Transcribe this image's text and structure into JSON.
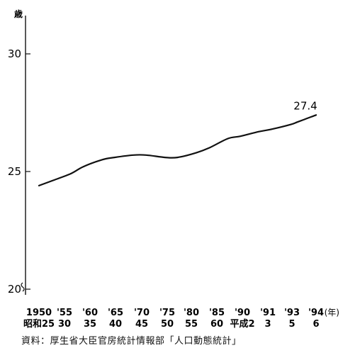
{
  "chart_data": {
    "type": "line",
    "title": "",
    "ylabel": "歳",
    "xlabel": "(年)",
    "ylim": [
      20,
      31
    ],
    "yticks": [
      20,
      25,
      30
    ],
    "y_axis_break": true,
    "grid": false,
    "x_ticks_row1": [
      "1950",
      "'55",
      "'60",
      "'65",
      "'70",
      "'75",
      "'80",
      "'85",
      "'90",
      "'91",
      "'93",
      "'94"
    ],
    "x_ticks_row2": [
      "昭和25",
      "30",
      "35",
      "40",
      "45",
      "50",
      "55",
      "60",
      "平成2",
      "3",
      "5",
      "6"
    ],
    "series": [
      {
        "x": [
          1950,
          1952,
          1955,
          1957,
          1960,
          1962,
          1965,
          1967,
          1970,
          1972,
          1975,
          1977,
          1980,
          1982,
          1985,
          1987,
          1990,
          1991,
          1992,
          1993,
          1994
        ],
        "values": [
          24.4,
          24.6,
          24.9,
          25.2,
          25.5,
          25.6,
          25.7,
          25.7,
          25.6,
          25.6,
          25.8,
          26.0,
          26.4,
          26.5,
          26.7,
          26.8,
          27.0,
          27.1,
          27.2,
          27.3,
          27.4
        ]
      }
    ],
    "annotations": [
      {
        "text": "27.4"
      }
    ]
  },
  "source": "資料：厚生省大臣官房統計情報部「人口動態統計」"
}
